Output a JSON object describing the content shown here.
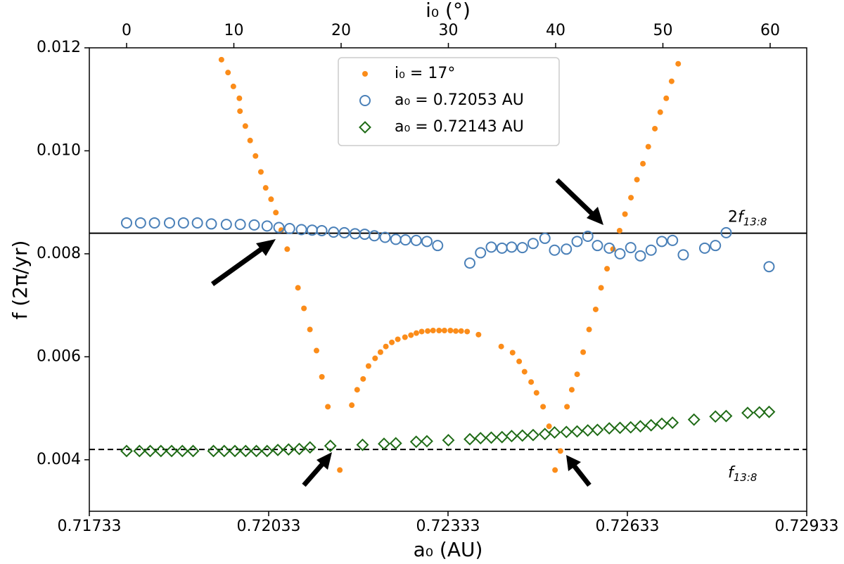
{
  "chart_data": {
    "type": "scatter",
    "xlabel": "a₀ (AU)",
    "x2label": "i₀ (°)",
    "ylabel": "f (2π/yr)",
    "xlim": [
      0.71733,
      0.72933
    ],
    "xticks": [
      0.71733,
      0.72033,
      0.72333,
      0.72633,
      0.72933
    ],
    "x2lim": [
      -3.475,
      63.41
    ],
    "x2ticks": [
      0,
      10,
      20,
      30,
      40,
      50,
      60
    ],
    "ylim": [
      0.003,
      0.012
    ],
    "yticks": [
      0.004,
      0.006,
      0.008,
      {
        "value": 0.01,
        "label": "0.010"
      },
      0.012
    ],
    "legend": "upper center",
    "hlines": [
      {
        "value": 0.0084,
        "style": "solid",
        "label_position": "above",
        "label": {
          "prefix": "2",
          "main": "f",
          "sub": "13:8"
        }
      },
      {
        "value": 0.0042,
        "style": "dashed",
        "label_position": "below",
        "label": {
          "main": "f",
          "sub": "13:8"
        }
      }
    ],
    "series": [
      {
        "name": "i₀ = 17°",
        "color": "#fb8c19",
        "marker": "dot",
        "x": [
          0.71954,
          0.71965,
          0.71974,
          0.71984,
          0.71985,
          0.71994,
          0.72002,
          0.72011,
          0.7202,
          0.72028,
          0.72037,
          0.72045,
          0.72054,
          0.72064,
          0.72082,
          0.72092,
          0.72102,
          0.72113,
          0.72122,
          0.72132,
          0.72152,
          0.72172,
          0.72181,
          0.72191,
          0.722,
          0.72211,
          0.7222,
          0.72229,
          0.72239,
          0.72249,
          0.72261,
          0.72271,
          0.7228,
          0.72289,
          0.72299,
          0.72308,
          0.72318,
          0.72327,
          0.72337,
          0.72346,
          0.72355,
          0.72365,
          0.72384,
          0.72422,
          0.72441,
          0.72452,
          0.72461,
          0.72472,
          0.72481,
          0.72492,
          0.72502,
          0.72512,
          0.72521,
          0.72532,
          0.7254,
          0.72549,
          0.72559,
          0.72569,
          0.7258,
          0.72589,
          0.72599,
          0.72609,
          0.7262,
          0.72629,
          0.72639,
          0.72649,
          0.72659,
          0.72668,
          0.72679,
          0.72688,
          0.72698,
          0.72707,
          0.72718
        ],
        "values": [
          0.01177,
          0.01152,
          0.01125,
          0.01102,
          0.01077,
          0.01048,
          0.0102,
          0.0099,
          0.00959,
          0.00928,
          0.00906,
          0.0088,
          0.00846,
          0.00809,
          0.00734,
          0.00694,
          0.00653,
          0.00612,
          0.00561,
          0.00503,
          0.0038,
          0.00506,
          0.00536,
          0.00557,
          0.00582,
          0.00597,
          0.00609,
          0.0062,
          0.00628,
          0.00634,
          0.00638,
          0.00642,
          0.00646,
          0.00649,
          0.0065,
          0.00651,
          0.00651,
          0.00651,
          0.00651,
          0.0065,
          0.0065,
          0.00649,
          0.00643,
          0.0062,
          0.00608,
          0.00591,
          0.00571,
          0.00551,
          0.0053,
          0.00503,
          0.00465,
          0.0038,
          0.00417,
          0.00503,
          0.00536,
          0.00566,
          0.00609,
          0.00653,
          0.00692,
          0.00734,
          0.00771,
          0.00809,
          0.00845,
          0.00877,
          0.00909,
          0.00944,
          0.00975,
          0.01008,
          0.01043,
          0.01075,
          0.01102,
          0.01135,
          0.01169
        ]
      },
      {
        "name": "a₀ = 0.72053 AU",
        "color": "#4a80b8",
        "marker": "circle",
        "axis": "x2",
        "x": [
          0,
          1.3,
          2.6,
          4.0,
          5.3,
          6.6,
          7.9,
          9.3,
          10.6,
          11.9,
          13.1,
          14.2,
          15.2,
          16.3,
          17.3,
          18.2,
          19.3,
          20.3,
          21.3,
          22.2,
          23.1,
          24.1,
          25.1,
          26.0,
          27.0,
          28.0,
          29.0,
          32.0,
          33.0,
          34.0,
          35.0,
          35.9,
          36.9,
          37.9,
          39.0,
          39.9,
          41.0,
          42.0,
          43.0,
          43.9,
          45.0,
          46.0,
          47.0,
          47.9,
          48.9,
          49.9,
          50.9,
          51.9,
          53.9,
          54.9,
          55.9,
          59.9
        ],
        "values": [
          0.0086,
          0.0086,
          0.0086,
          0.0086,
          0.0086,
          0.0086,
          0.00858,
          0.00857,
          0.00857,
          0.00856,
          0.00854,
          0.00851,
          0.00849,
          0.00847,
          0.00846,
          0.00845,
          0.00842,
          0.00841,
          0.00839,
          0.00838,
          0.00835,
          0.00832,
          0.00828,
          0.00827,
          0.00826,
          0.00824,
          0.00816,
          0.00782,
          0.00802,
          0.00813,
          0.00811,
          0.00813,
          0.00812,
          0.0082,
          0.0083,
          0.00807,
          0.00809,
          0.00824,
          0.00834,
          0.00816,
          0.00811,
          0.008,
          0.00812,
          0.00796,
          0.00807,
          0.00824,
          0.00826,
          0.00798,
          0.00811,
          0.00816,
          0.00841,
          0.00775
        ]
      },
      {
        "name": "a₀ = 0.72143 AU",
        "color": "#1f6b16",
        "marker": "diamond",
        "axis": "x2",
        "x": [
          0,
          1.2,
          2.2,
          3.2,
          4.2,
          5.2,
          6.2,
          8.1,
          9.1,
          10.1,
          11.1,
          12.1,
          13.1,
          14.1,
          15.1,
          16.1,
          17.1,
          19.0,
          22.0,
          24.0,
          25.1,
          27.0,
          28.0,
          30.0,
          32.0,
          33.0,
          34.0,
          35.0,
          35.9,
          36.9,
          37.9,
          39.0,
          39.9,
          41.0,
          42.0,
          43.0,
          43.9,
          45.0,
          46.0,
          47.0,
          47.9,
          48.9,
          49.9,
          50.9,
          52.9,
          54.9,
          55.9,
          57.9,
          59.0,
          59.9
        ],
        "values": [
          0.00417,
          0.00417,
          0.00417,
          0.00417,
          0.00417,
          0.00417,
          0.00417,
          0.00417,
          0.00417,
          0.00417,
          0.00417,
          0.00417,
          0.00417,
          0.00419,
          0.0042,
          0.00421,
          0.00424,
          0.00427,
          0.00429,
          0.00431,
          0.00432,
          0.00435,
          0.00436,
          0.00438,
          0.0044,
          0.00442,
          0.00443,
          0.00444,
          0.00446,
          0.00447,
          0.00448,
          0.0045,
          0.00453,
          0.00454,
          0.00455,
          0.00457,
          0.00458,
          0.00461,
          0.00462,
          0.00463,
          0.00465,
          0.00467,
          0.0047,
          0.00472,
          0.00478,
          0.00484,
          0.00485,
          0.00491,
          0.00492,
          0.00493
        ]
      }
    ]
  }
}
